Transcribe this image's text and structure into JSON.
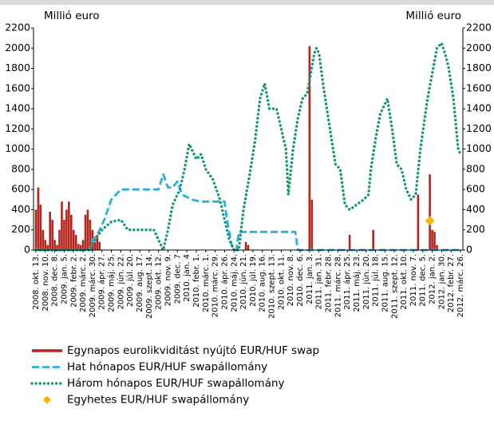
{
  "chart_data": {
    "type": "combo",
    "y_label": "Millió euro",
    "y2_label": "Millió euro",
    "ylim": [
      0,
      2200
    ],
    "yticks": [
      0,
      200,
      400,
      600,
      800,
      1000,
      1200,
      1400,
      1600,
      1800,
      2000,
      2200
    ],
    "y2lim": [
      0,
      2200
    ],
    "y2ticks": [
      0,
      200,
      400,
      600,
      800,
      1000,
      1200,
      1400,
      1600,
      1800,
      2000,
      2200
    ],
    "xlim": [
      -1,
      181
    ],
    "xticks": [
      {
        "value": 0,
        "label": "2008. okt. 13."
      },
      {
        "value": 4,
        "label": "2008. nov. 10."
      },
      {
        "value": 8,
        "label": "2008. dec. 8."
      },
      {
        "value": 12,
        "label": "2009. jan. 5."
      },
      {
        "value": 16,
        "label": "2009. febr. 2."
      },
      {
        "value": 20,
        "label": "2009. márc. 2."
      },
      {
        "value": 24,
        "label": "2009. márc. 30."
      },
      {
        "value": 28,
        "label": "2009. ápr. 27."
      },
      {
        "value": 32,
        "label": "2009. máj. 25."
      },
      {
        "value": 36,
        "label": "2009. jún. 22."
      },
      {
        "value": 40,
        "label": "2009. júl. 20."
      },
      {
        "value": 44,
        "label": "2009. aug. 17."
      },
      {
        "value": 48,
        "label": "2009. szept. 14."
      },
      {
        "value": 52,
        "label": "2009. okt. 12."
      },
      {
        "value": 56,
        "label": "2009. nov. 9."
      },
      {
        "value": 60,
        "label": "2009. dec. 7"
      },
      {
        "value": 64,
        "label": "2010. jan. 4"
      },
      {
        "value": 68,
        "label": "2010. febr. 1."
      },
      {
        "value": 72,
        "label": "2010. márc. 1."
      },
      {
        "value": 76,
        "label": "2010. márc. 29."
      },
      {
        "value": 80,
        "label": "2010. ápr. 26."
      },
      {
        "value": 84,
        "label": "2010. máj. 24."
      },
      {
        "value": 88,
        "label": "2010. jún. 21."
      },
      {
        "value": 92,
        "label": "2010. júl. 19."
      },
      {
        "value": 96,
        "label": "2010. aug. 16."
      },
      {
        "value": 100,
        "label": "2010. szept. 13."
      },
      {
        "value": 104,
        "label": "2010. okt. 11."
      },
      {
        "value": 108,
        "label": "2010. nov. 8."
      },
      {
        "value": 112,
        "label": "2010. dec. 6."
      },
      {
        "value": 116,
        "label": "2011. jan. 3."
      },
      {
        "value": 120,
        "label": "2011. jan. 31."
      },
      {
        "value": 124,
        "label": "2011. febr. 28."
      },
      {
        "value": 128,
        "label": "2011. márc. 28."
      },
      {
        "value": 132,
        "label": "2011. ápr. 25."
      },
      {
        "value": 136,
        "label": "2011. máj. 23."
      },
      {
        "value": 140,
        "label": "2011. jún. 20."
      },
      {
        "value": 144,
        "label": "2011. júl. 18."
      },
      {
        "value": 148,
        "label": "2011. aug. 15."
      },
      {
        "value": 152,
        "label": "2011. szept. 12."
      },
      {
        "value": 156,
        "label": "2011. okt. 10."
      },
      {
        "value": 160,
        "label": "2011. nov. 7."
      },
      {
        "value": 164,
        "label": "2011. dec. 5."
      },
      {
        "value": 168,
        "label": "2012. jan. 2."
      },
      {
        "value": 172,
        "label": "2012. jan. 30."
      },
      {
        "value": 176,
        "label": "2012. febr. 27."
      },
      {
        "value": 180,
        "label": "2012. márc. 26."
      }
    ],
    "series": [
      {
        "name": "Egynapos eurolikviditást nyújtó EUR/HUF swap",
        "type": "bar",
        "color": "#b3261e",
        "x": [
          0,
          1,
          2,
          3,
          4,
          5,
          6,
          7,
          8,
          9,
          10,
          11,
          12,
          13,
          14,
          15,
          16,
          17,
          18,
          19,
          20,
          21,
          22,
          23,
          24,
          25,
          26,
          27,
          89,
          90,
          116,
          117,
          133,
          143,
          162,
          167,
          168,
          169,
          170
        ],
        "values": [
          400,
          620,
          450,
          200,
          100,
          50,
          380,
          300,
          100,
          50,
          200,
          480,
          300,
          400,
          480,
          350,
          200,
          150,
          60,
          50,
          100,
          350,
          400,
          300,
          200,
          80,
          150,
          80,
          80,
          50,
          2020,
          500,
          150,
          200,
          550,
          750,
          200,
          180,
          50
        ]
      },
      {
        "name": "Hat hónapos EUR/HUF swapállomány",
        "type": "line",
        "style": "dashed",
        "color": "#29b0e0",
        "x": [
          0,
          23,
          24,
          26,
          29,
          32,
          36,
          52,
          54,
          56,
          58,
          60,
          62,
          66,
          70,
          80,
          81,
          83,
          84,
          85,
          86,
          110,
          111,
          180
        ],
        "values": [
          0,
          0,
          100,
          150,
          300,
          500,
          600,
          600,
          750,
          620,
          620,
          680,
          550,
          500,
          480,
          480,
          300,
          50,
          0,
          0,
          180,
          180,
          0,
          0
        ]
      },
      {
        "name": "Három hónapos EUR/HUF swapállomány",
        "type": "line",
        "style": "dotted",
        "color": "#15967a",
        "x": [
          0,
          23,
          25,
          28,
          32,
          36,
          39,
          44,
          50,
          53,
          54,
          56,
          58,
          61,
          63,
          65,
          68,
          70,
          72,
          75,
          78,
          80,
          82,
          84,
          86,
          88,
          91,
          93,
          95,
          97,
          99,
          102,
          104,
          106,
          107,
          109,
          111,
          113,
          115,
          118,
          119,
          120,
          122,
          124,
          126,
          127,
          129,
          131,
          133,
          136,
          139,
          141,
          142,
          144,
          146,
          148,
          149,
          151,
          153,
          155,
          157,
          159,
          161,
          163,
          166,
          170,
          172,
          174,
          175,
          177,
          179,
          180
        ],
        "values": [
          0,
          0,
          100,
          200,
          280,
          300,
          200,
          200,
          200,
          50,
          0,
          200,
          450,
          600,
          800,
          1050,
          900,
          950,
          800,
          700,
          500,
          300,
          100,
          0,
          0,
          400,
          800,
          1100,
          1500,
          1650,
          1400,
          1400,
          1200,
          1000,
          550,
          1000,
          1300,
          1500,
          1550,
          1950,
          2000,
          1950,
          1600,
          1300,
          1000,
          850,
          800,
          450,
          400,
          450,
          500,
          550,
          800,
          1100,
          1350,
          1450,
          1500,
          1200,
          850,
          800,
          600,
          500,
          550,
          1000,
          1500,
          2000,
          2050,
          1900,
          1800,
          1500,
          1000,
          950
        ]
      },
      {
        "name": "Egyhetes EUR/HUF swapállomány",
        "type": "scatter",
        "color": "#f5b800",
        "x": [
          167
        ],
        "values": [
          290
        ]
      }
    ]
  }
}
